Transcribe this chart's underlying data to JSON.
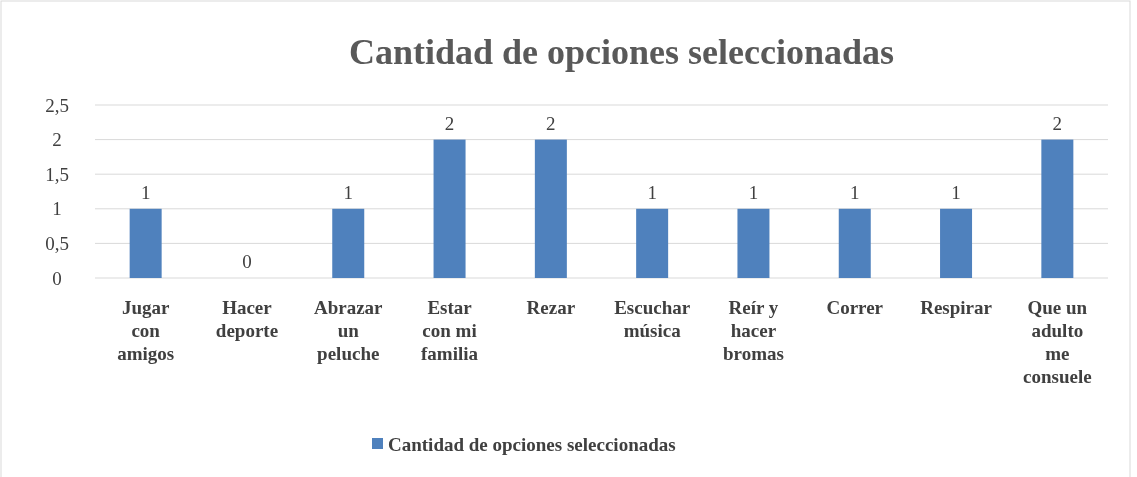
{
  "chart_data": {
    "type": "bar",
    "title": "Cantidad de opciones seleccionadas",
    "categories": [
      "Jugar con amigos",
      "Hacer deporte",
      "Abrazar un peluche",
      "Estar con mi familia",
      "Rezar",
      "Escuchar música",
      "Reír y hacer bromas",
      "Correr",
      "Respirar",
      "Que un adulto me consuele"
    ],
    "series": [
      {
        "name": "Cantidad de opciones seleccionadas",
        "color": "#4f81bd",
        "values": [
          1,
          0,
          1,
          2,
          2,
          1,
          1,
          1,
          1,
          2
        ]
      }
    ],
    "ylim": [
      0,
      2.5
    ],
    "yticks": [
      0,
      {
        "value": 0.5,
        "label": "0,5"
      },
      1,
      {
        "value": 1.5,
        "label": "1,5"
      },
      2,
      {
        "value": 2.5,
        "label": "2,5"
      }
    ],
    "grid": "y",
    "legend": "bottom",
    "data_labels": true
  }
}
